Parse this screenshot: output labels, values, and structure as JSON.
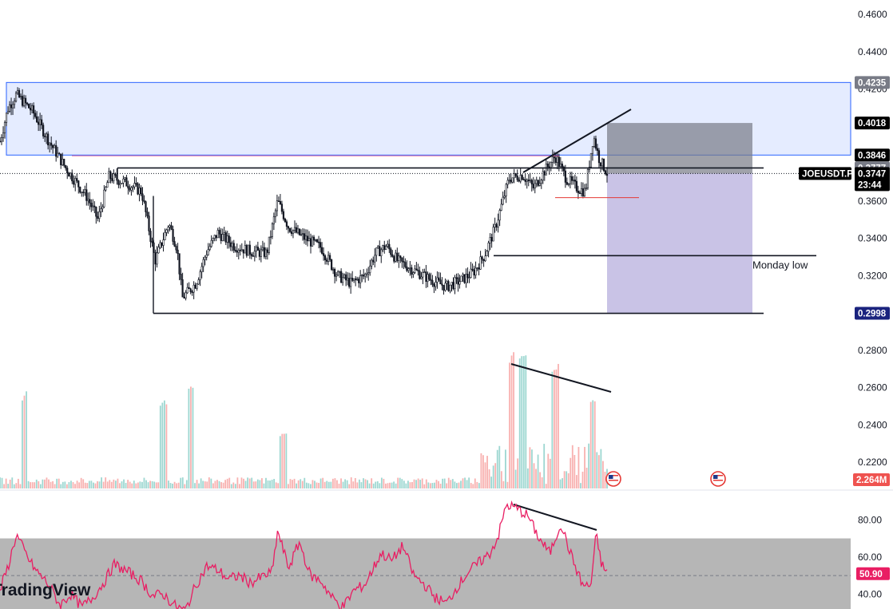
{
  "chart_data": [
    {
      "type": "candlestick",
      "name": "price",
      "title": "",
      "ylim": [
        0.29,
        0.46
      ],
      "grid": false,
      "price_ticks": [
        "0.4600",
        "0.4400",
        "0.4200",
        "0.3600",
        "0.3400",
        "0.3200",
        "0.2800",
        "0.2600",
        "0.2400",
        "0.2200"
      ],
      "badges": {
        "zone_top": "0.4235",
        "target_top": "0.4018",
        "zone_bottom": "0.3846",
        "resistance": "0.3777",
        "symbol": "JOEUSDT.P",
        "last_price": "0.3747",
        "countdown": "23:44",
        "range_low": "0.2998"
      },
      "levels": {
        "zone_top": 0.4235,
        "zone_bottom": 0.3846,
        "resistance": 0.3777,
        "last_price": 0.3747,
        "support_minor": 0.3618,
        "monday_low": 0.3307,
        "range_low": 0.2998,
        "position_stop": 0.4018,
        "position_entry": 0.3747,
        "position_target": 0.2998
      },
      "annotations": {
        "monday_low": "Monday low"
      },
      "price_path": [
        [
          0.0,
          0.392
        ],
        [
          0.015,
          0.41
        ],
        [
          0.03,
          0.417
        ],
        [
          0.06,
          0.408
        ],
        [
          0.09,
          0.392
        ],
        [
          0.12,
          0.378
        ],
        [
          0.16,
          0.362
        ],
        [
          0.18,
          0.35
        ],
        [
          0.2,
          0.373
        ],
        [
          0.23,
          0.37
        ],
        [
          0.26,
          0.365
        ],
        [
          0.285,
          0.328
        ],
        [
          0.31,
          0.348
        ],
        [
          0.325,
          0.335
        ],
        [
          0.335,
          0.308
        ],
        [
          0.36,
          0.316
        ],
        [
          0.38,
          0.333
        ],
        [
          0.4,
          0.343
        ],
        [
          0.43,
          0.336
        ],
        [
          0.46,
          0.333
        ],
        [
          0.49,
          0.332
        ],
        [
          0.51,
          0.36
        ],
        [
          0.53,
          0.346
        ],
        [
          0.56,
          0.34
        ],
        [
          0.59,
          0.335
        ],
        [
          0.62,
          0.32
        ],
        [
          0.645,
          0.316
        ],
        [
          0.67,
          0.32
        ],
        [
          0.69,
          0.332
        ],
        [
          0.71,
          0.336
        ],
        [
          0.73,
          0.328
        ],
        [
          0.76,
          0.323
        ],
        [
          0.79,
          0.318
        ],
        [
          0.82,
          0.314
        ],
        [
          0.85,
          0.318
        ],
        [
          0.87,
          0.322
        ],
        [
          0.89,
          0.331
        ],
        [
          0.91,
          0.346
        ],
        [
          0.935,
          0.372
        ],
        [
          0.96,
          0.374
        ],
        [
          0.98,
          0.367
        ],
        [
          1.0,
          0.376
        ],
        [
          1.02,
          0.384
        ],
        [
          1.04,
          0.372
        ],
        [
          1.06,
          0.367
        ],
        [
          1.075,
          0.365
        ],
        [
          1.09,
          0.395
        ],
        [
          1.1,
          0.383
        ],
        [
          1.115,
          0.375
        ]
      ]
    },
    {
      "type": "bar",
      "name": "volume",
      "badge": "2.264M",
      "spikes": [
        [
          0.045,
          0.7
        ],
        [
          0.3,
          0.65
        ],
        [
          0.35,
          0.75
        ],
        [
          0.52,
          0.4
        ],
        [
          0.94,
          0.98
        ],
        [
          0.96,
          0.97
        ],
        [
          1.02,
          0.9
        ],
        [
          1.09,
          0.65
        ]
      ]
    },
    {
      "type": "line",
      "name": "rsi",
      "ylim": [
        32,
        96
      ],
      "ticks": [
        "80.00",
        "60.00",
        "40.00"
      ],
      "band": [
        30,
        70
      ],
      "midline": 50,
      "last_value": "50.90",
      "path": [
        [
          0.0,
          42
        ],
        [
          0.015,
          55
        ],
        [
          0.03,
          72
        ],
        [
          0.05,
          60
        ],
        [
          0.065,
          53
        ],
        [
          0.09,
          45
        ],
        [
          0.11,
          34
        ],
        [
          0.13,
          40
        ],
        [
          0.15,
          33
        ],
        [
          0.17,
          38
        ],
        [
          0.19,
          46
        ],
        [
          0.21,
          56
        ],
        [
          0.24,
          51
        ],
        [
          0.26,
          47
        ],
        [
          0.28,
          39
        ],
        [
          0.3,
          40
        ],
        [
          0.32,
          34
        ],
        [
          0.34,
          31
        ],
        [
          0.36,
          45
        ],
        [
          0.38,
          55
        ],
        [
          0.4,
          53
        ],
        [
          0.42,
          48
        ],
        [
          0.44,
          50
        ],
        [
          0.46,
          46
        ],
        [
          0.48,
          49
        ],
        [
          0.5,
          52
        ],
        [
          0.51,
          74
        ],
        [
          0.53,
          54
        ],
        [
          0.55,
          68
        ],
        [
          0.57,
          50
        ],
        [
          0.59,
          47
        ],
        [
          0.61,
          38
        ],
        [
          0.63,
          33
        ],
        [
          0.65,
          42
        ],
        [
          0.67,
          45
        ],
        [
          0.7,
          62
        ],
        [
          0.72,
          58
        ],
        [
          0.74,
          66
        ],
        [
          0.76,
          50
        ],
        [
          0.78,
          45
        ],
        [
          0.8,
          38
        ],
        [
          0.82,
          35
        ],
        [
          0.84,
          44
        ],
        [
          0.86,
          52
        ],
        [
          0.88,
          57
        ],
        [
          0.9,
          62
        ],
        [
          0.915,
          71
        ],
        [
          0.93,
          88
        ],
        [
          0.95,
          86
        ],
        [
          0.97,
          82
        ],
        [
          0.99,
          70
        ],
        [
          1.01,
          62
        ],
        [
          1.03,
          78
        ],
        [
          1.05,
          60
        ],
        [
          1.07,
          45
        ],
        [
          1.085,
          44
        ],
        [
          1.095,
          72
        ],
        [
          1.105,
          56
        ],
        [
          1.115,
          51
        ]
      ]
    }
  ],
  "watermark": "TradingView"
}
